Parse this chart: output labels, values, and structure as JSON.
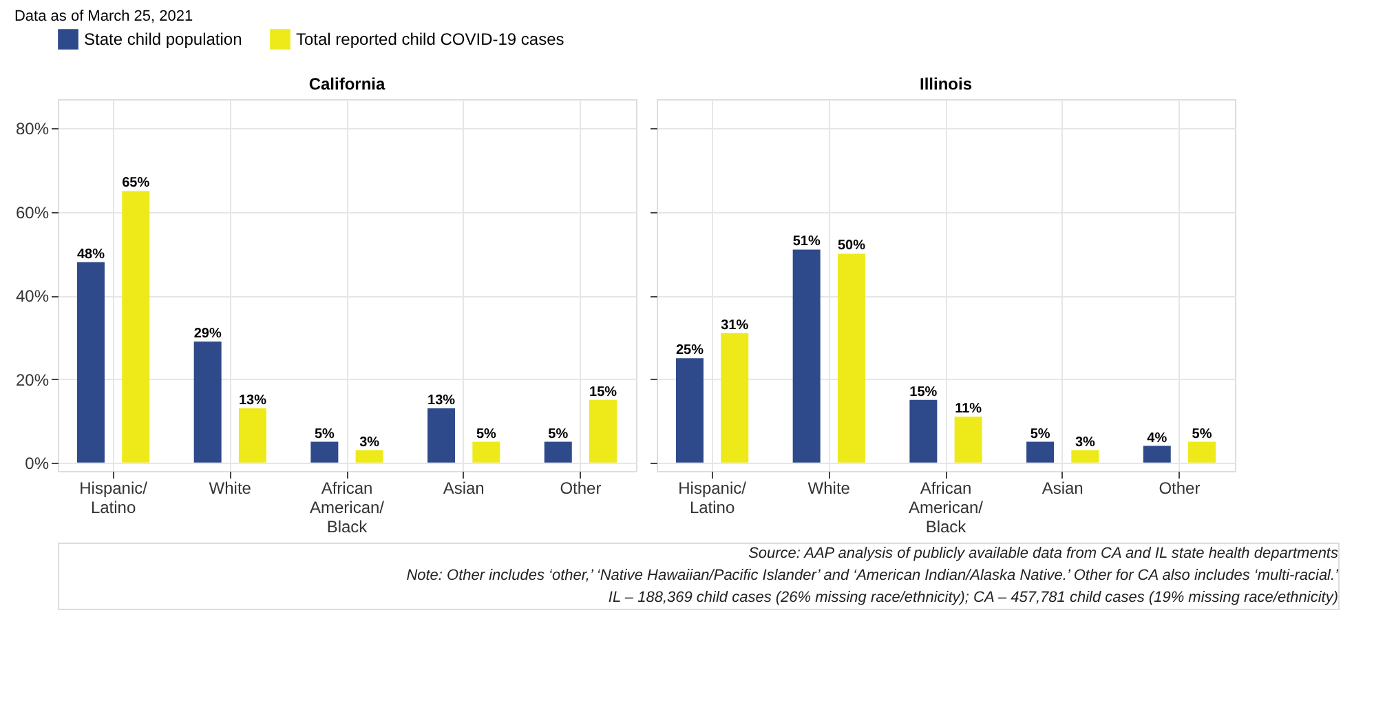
{
  "chart_data": [
    {
      "type": "bar",
      "title": "California",
      "categories": [
        "Hispanic/\nLatino",
        "White",
        "African\nAmerican/\nBlack",
        "Asian",
        "Other"
      ],
      "series": [
        {
          "name": "State child population",
          "color": "#2f4a8a",
          "values": [
            48,
            29,
            5,
            13,
            5
          ]
        },
        {
          "name": "Total reported child COVID-19 cases",
          "color": "#eeea1a",
          "values": [
            65,
            13,
            3,
            5,
            15
          ]
        }
      ],
      "ylim": [
        -2,
        87
      ],
      "yticks": [
        {
          "value": 0,
          "label": "0%"
        },
        {
          "value": 20,
          "label": "20%"
        },
        {
          "value": 40,
          "label": "40%"
        },
        {
          "value": 60,
          "label": "60%"
        },
        {
          "value": 80,
          "label": "80%"
        }
      ],
      "value_labels": [
        [
          "48%",
          "29%",
          "5%",
          "13%",
          "5%"
        ],
        [
          "65%",
          "13%",
          "3%",
          "5%",
          "15%"
        ]
      ],
      "grid": true,
      "legend": "top",
      "annotations": [
        "Data as of March 25, 2021",
        "Source: AAP analysis of publicly available data from CA and IL state health departments",
        "Note: Other includes ‘other,’ ‘Native Hawaiian/Pacific Islander’ and ‘American Indian/Alaska Native.’ Other for CA also includes ‘multi-racial.’",
        "IL – 188,369 child cases (26% missing race/ethnicity); CA – 457,781 child cases (19% missing race/ethnicity)"
      ]
    },
    {
      "type": "bar",
      "title": "Illinois",
      "categories": [
        "Hispanic/\nLatino",
        "White",
        "African\nAmerican/\nBlack",
        "Asian",
        "Other"
      ],
      "series": [
        {
          "color": "#2f4a8a",
          "values": [
            25,
            51,
            15,
            5,
            4
          ]
        },
        {
          "color": "#eeea1a",
          "values": [
            31,
            50,
            11,
            3,
            5
          ]
        }
      ],
      "ylim": [
        -2,
        87
      ],
      "yticks": [
        {
          "value": 0,
          "label": null
        },
        {
          "value": 20,
          "label": null
        },
        {
          "value": 40,
          "label": null
        },
        {
          "value": 60,
          "label": null
        },
        {
          "value": 80,
          "label": null
        }
      ],
      "value_labels": [
        [
          "25%",
          "51%",
          "15%",
          "5%",
          "4%"
        ],
        [
          "31%",
          "50%",
          "11%",
          "3%",
          "5%"
        ]
      ],
      "grid": true,
      "legend": "top",
      "tick_labels": "x"
    }
  ]
}
